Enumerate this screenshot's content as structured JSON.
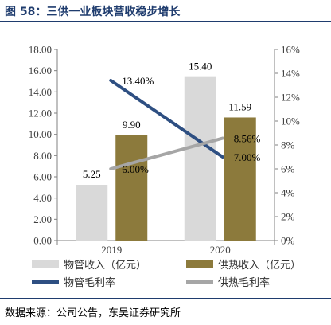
{
  "figure": {
    "title": "图 58：三供一业板块营收稳步增长",
    "source": "数据来源：公司公告，东吴证券研究所"
  },
  "chart_data": {
    "type": "bar",
    "categories": [
      "2019",
      "2020"
    ],
    "series": [
      {
        "name": "物管收入（亿元）",
        "kind": "bar",
        "axis": "left",
        "color": "#d9d9d9",
        "values": [
          5.25,
          15.4
        ],
        "labels": [
          "5.25",
          "15.40"
        ]
      },
      {
        "name": "供热收入（亿元）",
        "kind": "bar",
        "axis": "left",
        "color": "#8c7a3c",
        "values": [
          9.9,
          11.59
        ],
        "labels": [
          "9.90",
          "11.59"
        ]
      },
      {
        "name": "物管毛利率",
        "kind": "line",
        "axis": "right",
        "color": "#2e4f82",
        "values": [
          13.4,
          7.0
        ],
        "labels": [
          "13.40%",
          "7.00%"
        ]
      },
      {
        "name": "供热毛利率",
        "kind": "line",
        "axis": "right",
        "color": "#a6a6a6",
        "values": [
          6.0,
          8.56
        ],
        "labels": [
          "6.00%",
          "8.56%"
        ]
      }
    ],
    "y_left": {
      "min": 0,
      "max": 18,
      "step": 2,
      "ticks": [
        "0.00",
        "2.00",
        "4.00",
        "6.00",
        "8.00",
        "10.00",
        "12.00",
        "14.00",
        "16.00",
        "18.00"
      ]
    },
    "y_right": {
      "min": 0,
      "max": 16,
      "step": 2,
      "ticks": [
        "0%",
        "2%",
        "4%",
        "6%",
        "8%",
        "10%",
        "12%",
        "14%",
        "16%"
      ]
    },
    "legend_position": "bottom",
    "grid": false
  }
}
